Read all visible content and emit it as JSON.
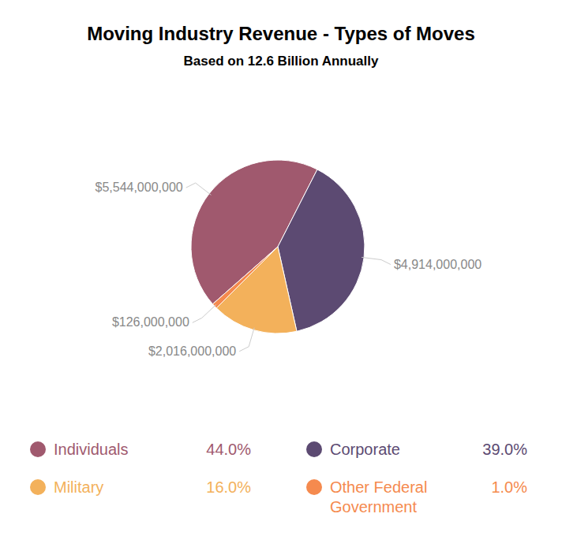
{
  "chart_data": {
    "type": "pie",
    "title": "Moving Industry Revenue - Types of Moves",
    "subtitle": "Based on 12.6 Billion Annually",
    "categories": [
      "Individuals",
      "Corporate",
      "Military",
      "Other Federal Government"
    ],
    "values": [
      5544000000,
      4914000000,
      2016000000,
      126000000
    ],
    "value_labels": [
      "$5,544,000,000",
      "$4,914,000,000",
      "$2,016,000,000",
      "$126,000,000"
    ],
    "shares": [
      44.0,
      39.0,
      16.0,
      1.0
    ],
    "share_labels": [
      "44.0%",
      "39.0%",
      "16.0%",
      "1.0%"
    ],
    "colors": [
      "#a0596e",
      "#5c4a72",
      "#f3b15b",
      "#f58a4e"
    ],
    "data_labels": true,
    "legend": "bottom"
  }
}
